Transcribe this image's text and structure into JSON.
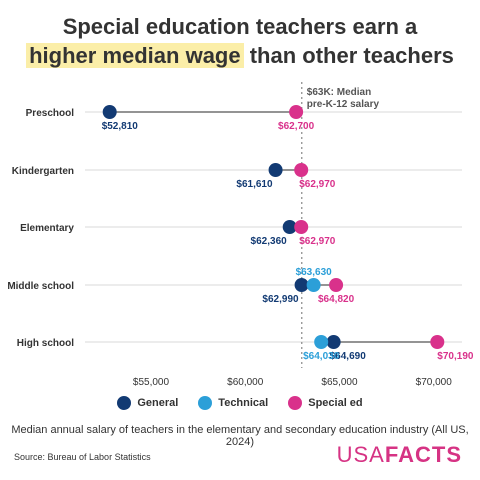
{
  "title": {
    "line1": "Special education teachers earn a",
    "highlight": "higher median wage",
    "line2_rest": " than other teachers"
  },
  "colors": {
    "general": "#123a73",
    "technical": "#2c9fd8",
    "special_ed": "#d9318b",
    "highlight": "#fbeea8",
    "grid": "#d9d9d9"
  },
  "chart_data": {
    "type": "scatter",
    "subtype": "dot plot",
    "categories": [
      "Preschool",
      "Kindergarten",
      "Elementary",
      "Middle school",
      "High school"
    ],
    "series": [
      {
        "name": "General",
        "values": [
          52810,
          61610,
          62360,
          62990,
          64690
        ],
        "labels": [
          "$52,810",
          "$61,610",
          "$62,360",
          "$62,990",
          "$64,690"
        ]
      },
      {
        "name": "Technical",
        "values": [
          null,
          null,
          null,
          63630,
          64030
        ],
        "labels": [
          "",
          "",
          "",
          "$63,630",
          "$64,030"
        ]
      },
      {
        "name": "Special ed",
        "values": [
          62700,
          62970,
          62970,
          64820,
          70190
        ],
        "labels": [
          "$62,700",
          "$62,970",
          "$62,970",
          "$64,820",
          "$70,190"
        ]
      }
    ],
    "xlim": [
      51500,
      71500
    ],
    "xticks": [
      55000,
      60000,
      65000,
      70000
    ],
    "xtick_labels": [
      "$55,000",
      "$60,000",
      "$65,000",
      "$70,000"
    ],
    "reference_line": {
      "value": 63000,
      "label_line1": "$63K: Median",
      "label_line2": "pre-K-12 salary"
    },
    "legend": [
      "General",
      "Technical",
      "Special ed"
    ],
    "legend_position": "bottom",
    "grid": "horizontal"
  },
  "caption": "Median annual salary of teachers in the elementary and secondary education industry (All US, 2024)",
  "source": "Source: Bureau of Labor Statistics",
  "logo": {
    "part1": "USA",
    "part2": "FACTS"
  }
}
